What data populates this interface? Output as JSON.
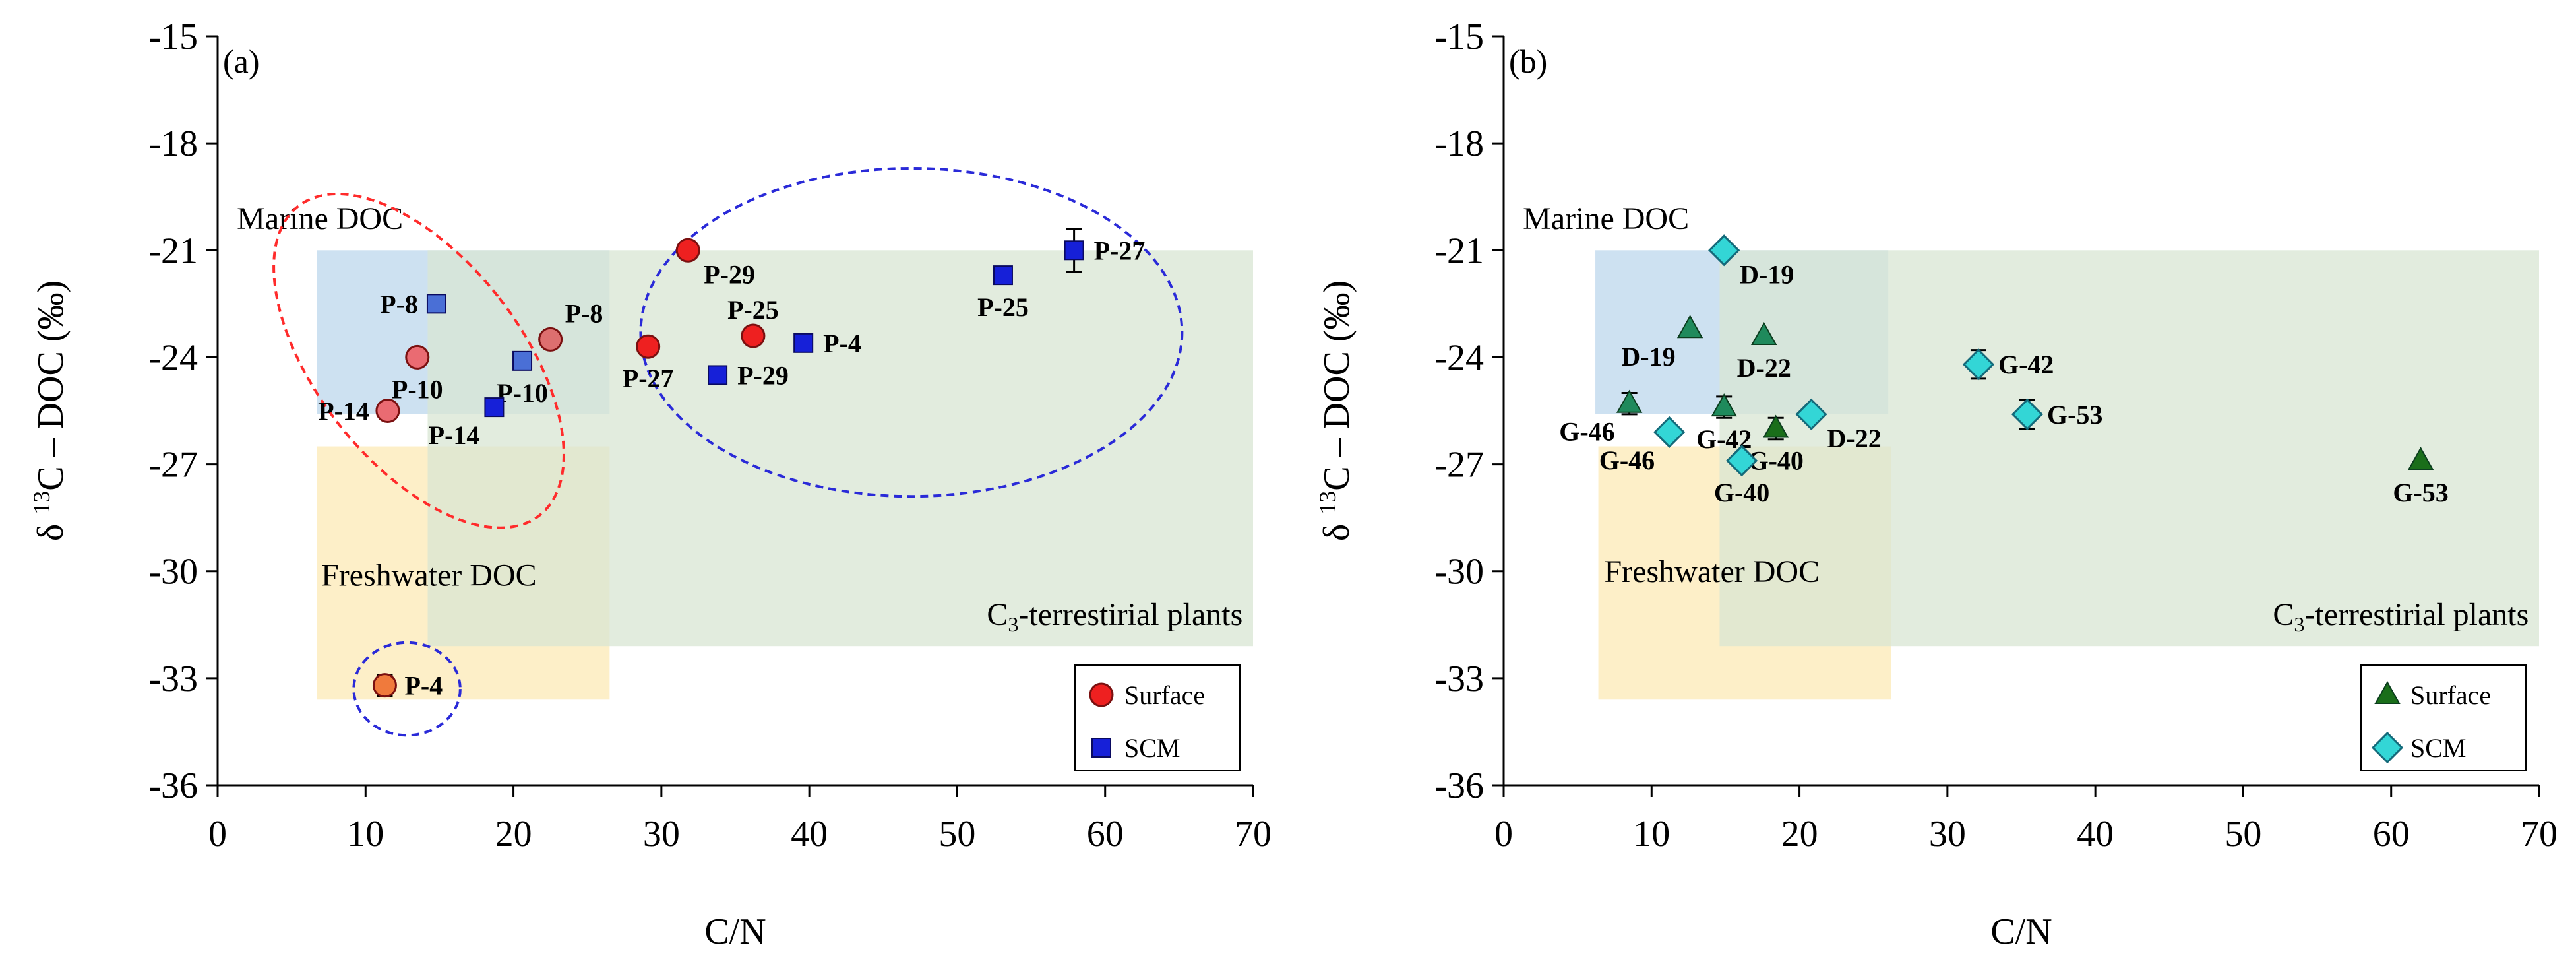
{
  "chart_data": [
    {
      "type": "scatter",
      "panel_label": "(a)",
      "xlabel": "C/N",
      "ylabel": {
        "prefix": "δ ",
        "sup": "13",
        "suffix": "C – DOC (‰)"
      },
      "xlim": [
        0,
        70
      ],
      "ylim": [
        -36,
        -15
      ],
      "xticks": [
        "0",
        "10",
        "20",
        "30",
        "40",
        "50",
        "60",
        "70"
      ],
      "yticks": [
        "-15",
        "-18",
        "-21",
        "-24",
        "-27",
        "-30",
        "-33",
        "-36"
      ],
      "regions": [
        {
          "name": "Marine DOC",
          "x": [
            6.7,
            26.5
          ],
          "y": [
            -25.6,
            -21
          ],
          "color": "#bcd7ec",
          "label_x": 1.3,
          "label_y": -20.4
        },
        {
          "name": "Freshwater DOC",
          "x": [
            6.7,
            26.5
          ],
          "y": [
            -33.6,
            -26.5
          ],
          "color": "#fce9b5",
          "label_x": 7,
          "label_y": -30.4
        },
        {
          "name_pre": "C",
          "name_sub": "3",
          "name_post": "-terrestirial plants",
          "x": [
            14.2,
            70
          ],
          "y": [
            -32.1,
            -21
          ],
          "color": "#d8e5d3",
          "label_x": 69.3,
          "label_y": -31.5
        }
      ],
      "ellipses": [
        {
          "cx": 13.6,
          "cy": -24.1,
          "rx": 6.9,
          "ry": 5.5,
          "rotate_deg": 38,
          "color": "#ff2b2b"
        },
        {
          "cx": 46.9,
          "cy": -23.3,
          "rx": 18.3,
          "ry": 4.6,
          "rotate_deg": 0,
          "color": "#2a2ad8"
        },
        {
          "cx": 12.8,
          "cy": -33.3,
          "rx": 3.6,
          "ry": 1.3,
          "rotate_deg": 0,
          "color": "#2a2ad8"
        }
      ],
      "series": [
        {
          "name": "Surface",
          "marker": "circle",
          "points": [
            {
              "x": 11.5,
              "y": -25.5,
              "label": "P-14",
              "label_pos": "left",
              "fill": "#ea6b72"
            },
            {
              "x": 13.5,
              "y": -24.0,
              "label": "P-10",
              "label_pos": "below",
              "fill": "#ea6b72"
            },
            {
              "x": 22.5,
              "y": -23.5,
              "label": "P-8",
              "label_pos": "above-right",
              "fill": "#dd6f6f"
            },
            {
              "x": 29.1,
              "y": -23.7,
              "label": "P-27",
              "label_pos": "below",
              "fill": "#ee2020"
            },
            {
              "x": 31.8,
              "y": -21.0,
              "label": "P-29",
              "label_pos": "below-right",
              "fill": "#ee2020"
            },
            {
              "x": 36.2,
              "y": -23.4,
              "label": "P-25",
              "label_pos": "above",
              "fill": "#ee2020"
            },
            {
              "x": 11.3,
              "y": -33.2,
              "label": "P-4",
              "label_pos": "right",
              "fill": "#f07a3c",
              "err": 0.3
            }
          ]
        },
        {
          "name": "SCM",
          "marker": "square",
          "points": [
            {
              "x": 14.8,
              "y": -22.5,
              "label": "P-8",
              "label_pos": "left",
              "fill": "#4a6fd6"
            },
            {
              "x": 20.6,
              "y": -24.1,
              "label": "P-10",
              "label_pos": "below",
              "fill": "#4a6fd6"
            },
            {
              "x": 18.7,
              "y": -25.4,
              "label": "P-14",
              "label_pos": "below-left",
              "fill": "#1620d8"
            },
            {
              "x": 33.8,
              "y": -24.5,
              "label": "P-29",
              "label_pos": "right",
              "fill": "#1620d8"
            },
            {
              "x": 39.6,
              "y": -23.6,
              "label": "P-4",
              "label_pos": "right",
              "fill": "#1620d8"
            },
            {
              "x": 53.1,
              "y": -21.7,
              "label": "P-25",
              "label_pos": "below",
              "fill": "#1620d8"
            },
            {
              "x": 57.9,
              "y": -21.0,
              "label": "P-27",
              "label_pos": "right",
              "fill": "#1620d8",
              "err": 0.6
            }
          ]
        }
      ],
      "legend": {
        "position": "bottom-right",
        "entries": [
          {
            "label": "Surface",
            "marker": "circle",
            "fill": "#ee2020"
          },
          {
            "label": "SCM",
            "marker": "square",
            "fill": "#1620d8"
          }
        ]
      }
    },
    {
      "type": "scatter",
      "panel_label": "(b)",
      "xlabel": "C/N",
      "ylabel": {
        "prefix": "δ ",
        "sup": "13",
        "suffix": "C – DOC (‰)"
      },
      "xlim": [
        0,
        70
      ],
      "ylim": [
        -36,
        -15
      ],
      "xticks": [
        "0",
        "10",
        "20",
        "30",
        "40",
        "50",
        "60",
        "70"
      ],
      "yticks": [
        "-15",
        "-18",
        "-21",
        "-24",
        "-27",
        "-30",
        "-33",
        "-36"
      ],
      "regions": [
        {
          "name": "Marine DOC",
          "x": [
            6.2,
            26.0
          ],
          "y": [
            -25.6,
            -21
          ],
          "color": "#bcd7ec",
          "label_x": 1.3,
          "label_y": -20.4
        },
        {
          "name": "Freshwater DOC",
          "x": [
            6.4,
            26.2
          ],
          "y": [
            -33.6,
            -26.5
          ],
          "color": "#fce9b5",
          "label_x": 6.8,
          "label_y": -30.3
        },
        {
          "name_pre": "C",
          "name_sub": "3",
          "name_post": "-terrestirial plants",
          "x": [
            14.6,
            70
          ],
          "y": [
            -32.1,
            -21
          ],
          "color": "#d8e5d3",
          "label_x": 69.3,
          "label_y": -31.5
        }
      ],
      "ellipses": [],
      "series": [
        {
          "name": "Surface",
          "marker": "triangle",
          "points": [
            {
              "x": 12.6,
              "y": -23.2,
              "label": "D-19",
              "label_pos": "below-left",
              "fill": "#1f8a5c"
            },
            {
              "x": 17.6,
              "y": -23.4,
              "label": "D-22",
              "label_pos": "below",
              "fill": "#1f8a5c"
            },
            {
              "x": 8.5,
              "y": -25.3,
              "label": "G-46",
              "label_pos": "below-left",
              "fill": "#1f8a5c",
              "err": 0.3
            },
            {
              "x": 14.9,
              "y": -25.4,
              "label": "G-42",
              "label_pos": "below",
              "fill": "#1f8a5c",
              "err": 0.3
            },
            {
              "x": 18.4,
              "y": -26.0,
              "label": "G-40",
              "label_pos": "below",
              "fill": "#1a6e1a",
              "err": 0.3
            },
            {
              "x": 62.0,
              "y": -26.9,
              "label": "G-53",
              "label_pos": "below",
              "fill": "#1a6e1a"
            }
          ]
        },
        {
          "name": "SCM",
          "marker": "diamond",
          "points": [
            {
              "x": 14.9,
              "y": -21.0,
              "label": "D-19",
              "label_pos": "below-right",
              "fill": "#33d6d6"
            },
            {
              "x": 20.8,
              "y": -25.6,
              "label": "D-22",
              "label_pos": "below-right",
              "fill": "#33d6d6"
            },
            {
              "x": 11.2,
              "y": -26.1,
              "label": "G-46",
              "label_pos": "below-left",
              "fill": "#33d6d6"
            },
            {
              "x": 16.1,
              "y": -26.9,
              "label": "G-40",
              "label_pos": "below",
              "fill": "#33d6d6"
            },
            {
              "x": 32.1,
              "y": -24.2,
              "label": "G-42",
              "label_pos": "right",
              "fill": "#33d6d6",
              "err": 0.4
            },
            {
              "x": 35.4,
              "y": -25.6,
              "label": "G-53",
              "label_pos": "right",
              "fill": "#33d6d6",
              "err": 0.4
            }
          ]
        }
      ],
      "legend": {
        "position": "bottom-right",
        "entries": [
          {
            "label": "Surface",
            "marker": "triangle",
            "fill": "#1a6e1a"
          },
          {
            "label": "SCM",
            "marker": "diamond",
            "fill": "#33d6d6"
          }
        ]
      }
    }
  ]
}
